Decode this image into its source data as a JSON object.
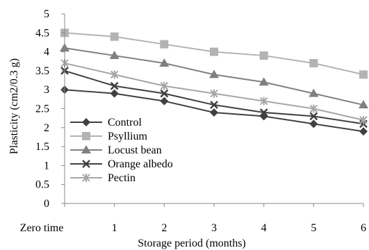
{
  "chart_data": {
    "type": "line",
    "title": "",
    "xlabel": "Storage period (months)",
    "ylabel": "Plasticity (cm2/0.3 g)",
    "categories": [
      "Zero time",
      "1",
      "2",
      "3",
      "4",
      "5",
      "6"
    ],
    "ylim": [
      0,
      5
    ],
    "yticks": [
      "0",
      "0.5",
      "1",
      "1.5",
      "2",
      "2.5",
      "3",
      "3.5",
      "4",
      "4.5",
      "5"
    ],
    "grid": false,
    "legend_position": "lower-left",
    "series": [
      {
        "name": "Control",
        "marker": "diamond",
        "color": "#404040",
        "values": [
          3.0,
          2.9,
          2.7,
          2.4,
          2.3,
          2.1,
          1.9
        ]
      },
      {
        "name": "Psyllium",
        "marker": "square",
        "color": "#b3b3b3",
        "values": [
          4.5,
          4.4,
          4.2,
          4.0,
          3.9,
          3.7,
          3.4
        ]
      },
      {
        "name": "Locust bean",
        "marker": "triangle",
        "color": "#808080",
        "values": [
          4.1,
          3.9,
          3.7,
          3.4,
          3.2,
          2.9,
          2.6
        ]
      },
      {
        "name": "Orange  albedo",
        "marker": "x",
        "color": "#404040",
        "values": [
          3.5,
          3.1,
          2.9,
          2.6,
          2.4,
          2.3,
          2.1
        ]
      },
      {
        "name": "Pectin",
        "marker": "star",
        "color": "#a6a6a6",
        "values": [
          3.7,
          3.4,
          3.1,
          2.9,
          2.7,
          2.5,
          2.2
        ]
      }
    ]
  }
}
